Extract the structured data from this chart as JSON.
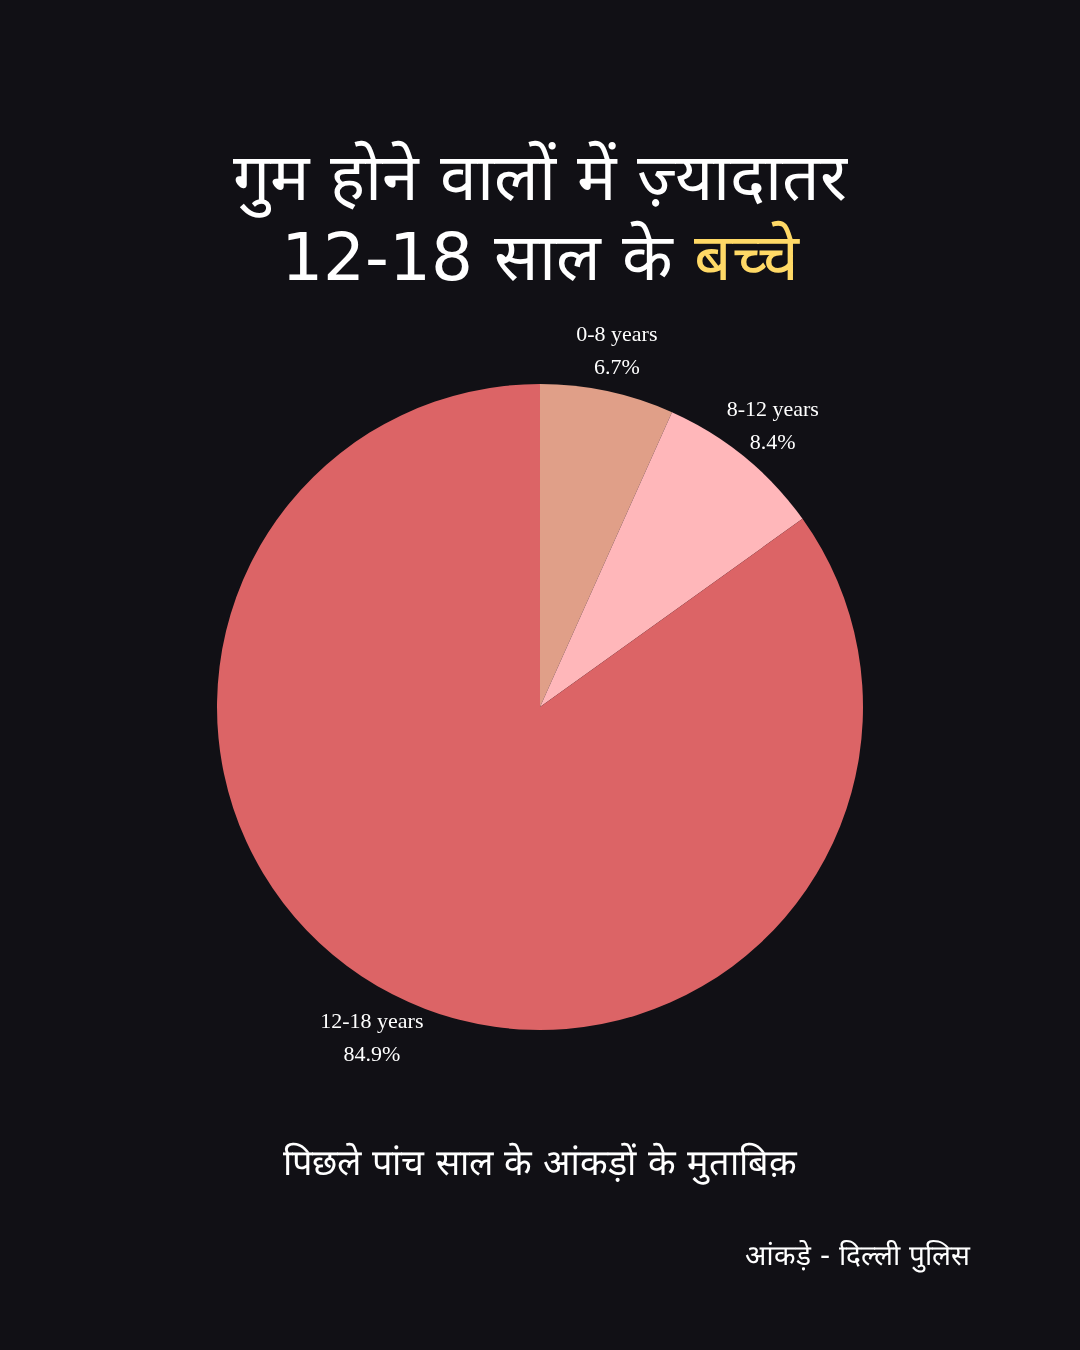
{
  "chart_data": {
    "type": "pie",
    "title": "गुम होने वालों में ज़्यादातर 12-18 साल के बच्चे",
    "subtitle": "पिछले पांच साल के आंकड़ों के मुताबिक़",
    "annotations": [
      "आंकड़े - दिल्ली पुलिस"
    ],
    "categories": [
      "0-8 years",
      "8-12 years",
      "12-18 years"
    ],
    "values": [
      6.7,
      8.4,
      84.9
    ],
    "value_labels": [
      "6.7%",
      "8.4%",
      "84.9%"
    ],
    "colors": [
      "#e09f88",
      "#ffb7ba",
      "#dc6466"
    ]
  }
}
